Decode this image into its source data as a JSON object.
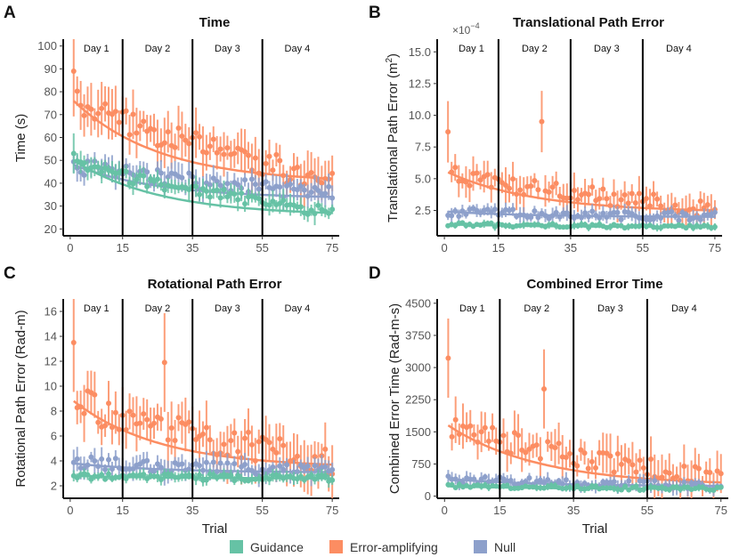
{
  "colors": {
    "guidance": "#66c2a5",
    "error_amplifying": "#fc8d62",
    "null": "#8da0cb"
  },
  "day_labels": [
    "Day 1",
    "Day 2",
    "Day 3",
    "Day 4"
  ],
  "day_boundaries": [
    15,
    35,
    55
  ],
  "legend": {
    "items": [
      {
        "key": "guidance",
        "label": "Guidance"
      },
      {
        "key": "error_amplifying",
        "label": "Error-amplifying"
      },
      {
        "key": "null",
        "label": "Null"
      }
    ]
  },
  "chart_data": [
    {
      "panel": "A",
      "type": "scatter",
      "title": "Time",
      "xlabel": "",
      "ylabel": "Time (s)",
      "xlim": [
        -2,
        77
      ],
      "ylim": [
        17,
        103
      ],
      "xticks": [
        0,
        15,
        35,
        55,
        75
      ],
      "xtick_labels": [
        "0",
        "15",
        "35",
        "55",
        "75"
      ],
      "yticks": [
        20,
        30,
        40,
        50,
        60,
        70,
        80,
        90,
        100
      ],
      "ytick_labels": [
        "20",
        "30",
        "40",
        "50",
        "60",
        "70",
        "80",
        "90",
        "100"
      ],
      "series": [
        {
          "name": "Error-amplifying",
          "key": "error_amplifying",
          "start": 76,
          "end": 41,
          "noise": 6,
          "err": 9,
          "trend_start": 76,
          "trend_end": 42,
          "spikes": [
            [
              1,
              89
            ]
          ]
        },
        {
          "name": "Null",
          "key": "null",
          "start": 48,
          "end": 35,
          "noise": 3.5,
          "err": 5,
          "trend_start": 48,
          "trend_end": 34,
          "spikes": []
        },
        {
          "name": "Guidance",
          "key": "guidance",
          "start": 49,
          "end": 27,
          "noise": 2.5,
          "err": 4,
          "trend_start": 50,
          "trend_end": 27,
          "spikes": [
            [
              1,
              53
            ]
          ]
        }
      ]
    },
    {
      "panel": "B",
      "type": "scatter",
      "title": "Translational Path Error",
      "xlabel": "",
      "ylabel": "Translational Path Error (m²)",
      "ylabel_main": "Translational Path Error (m",
      "ylabel_sup": "2",
      "ylabel_close": ")",
      "scale_note": "×10",
      "scale_exp": "−4",
      "xlim": [
        -2,
        77
      ],
      "ylim": [
        0.5,
        16
      ],
      "xticks": [
        0,
        15,
        35,
        55,
        75
      ],
      "xtick_labels": [
        "0",
        "15",
        "35",
        "55",
        "75"
      ],
      "yticks": [
        2.5,
        5.0,
        7.5,
        10.0,
        12.5,
        15.0
      ],
      "ytick_labels": [
        "2.5",
        "5.0",
        "7.5",
        "10.0",
        "12.5",
        "15.0"
      ],
      "series": [
        {
          "name": "Error-amplifying",
          "key": "error_amplifying",
          "start": 5.4,
          "end": 2.6,
          "noise": 0.7,
          "err": 1.1,
          "trend_start": 5.5,
          "trend_end": 2.5,
          "spikes": [
            [
              1,
              8.7
            ],
            [
              27,
              9.5
            ]
          ]
        },
        {
          "name": "Null",
          "key": "null",
          "start": 2.4,
          "end": 2.0,
          "noise": 0.35,
          "err": 0.5,
          "trend_start": 2.4,
          "trend_end": 2.0,
          "spikes": []
        },
        {
          "name": "Guidance",
          "key": "guidance",
          "start": 1.4,
          "end": 1.2,
          "noise": 0.15,
          "err": 0.25,
          "trend_start": 1.4,
          "trend_end": 1.2,
          "spikes": []
        }
      ]
    },
    {
      "panel": "C",
      "type": "scatter",
      "title": "Rotational Path Error",
      "xlabel": "Trial",
      "ylabel": "Rotational Path Error (Rad-m)",
      "xlim": [
        -2,
        77
      ],
      "ylim": [
        1,
        17
      ],
      "xticks": [
        0,
        15,
        35,
        55,
        75
      ],
      "xtick_labels": [
        "0",
        "15",
        "35",
        "55",
        "75"
      ],
      "yticks": [
        2,
        4,
        6,
        8,
        10,
        12,
        14,
        16
      ],
      "ytick_labels": [
        "2",
        "4",
        "6",
        "8",
        "10",
        "12",
        "14",
        "16"
      ],
      "series": [
        {
          "name": "Error-amplifying",
          "key": "error_amplifying",
          "start": 8.8,
          "end": 3.8,
          "noise": 1.3,
          "err": 1.8,
          "trend_start": 8.8,
          "trend_end": 3.7,
          "spikes": [
            [
              1,
              13.5
            ],
            [
              27,
              11.9
            ]
          ]
        },
        {
          "name": "Null",
          "key": "null",
          "start": 3.9,
          "end": 3.1,
          "noise": 0.5,
          "err": 0.8,
          "trend_start": 3.8,
          "trend_end": 3.1,
          "spikes": []
        },
        {
          "name": "Guidance",
          "key": "guidance",
          "start": 2.8,
          "end": 2.6,
          "noise": 0.25,
          "err": 0.4,
          "trend_start": 2.8,
          "trend_end": 2.6,
          "spikes": []
        }
      ]
    },
    {
      "panel": "D",
      "type": "scatter",
      "title": "Combined Error Time",
      "xlabel": "Trial",
      "ylabel": "Combined Error Time (Rad-m-s)",
      "xlim": [
        -2,
        77
      ],
      "ylim": [
        -50,
        4600
      ],
      "xticks": [
        0,
        15,
        35,
        55,
        75
      ],
      "xtick_labels": [
        "0",
        "15",
        "35",
        "55",
        "75"
      ],
      "yticks": [
        0,
        750,
        1500,
        2250,
        3000,
        3750,
        4500
      ],
      "ytick_labels": [
        "0",
        "750",
        "1500",
        "2250",
        "3000",
        "3750",
        "4500"
      ],
      "series": [
        {
          "name": "Error-amplifying",
          "key": "error_amplifying",
          "start": 1650,
          "end": 330,
          "noise": 260,
          "err": 420,
          "trend_start": 1650,
          "trend_end": 320,
          "spikes": [
            [
              1,
              3220
            ],
            [
              27,
              2500
            ]
          ]
        },
        {
          "name": "Null",
          "key": "null",
          "start": 400,
          "end": 240,
          "noise": 90,
          "err": 140,
          "trend_start": 400,
          "trend_end": 240,
          "spikes": []
        },
        {
          "name": "Guidance",
          "key": "guidance",
          "start": 230,
          "end": 170,
          "noise": 45,
          "err": 70,
          "trend_start": 230,
          "trend_end": 170,
          "spikes": []
        }
      ]
    }
  ]
}
